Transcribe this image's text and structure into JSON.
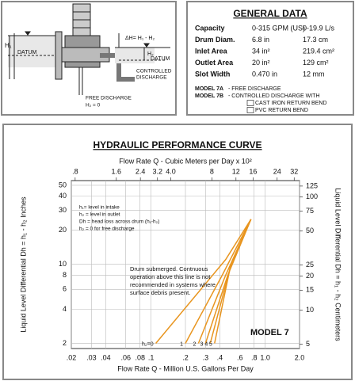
{
  "diagram": {
    "labels": {
      "h1": "H₁",
      "datum_left": "DATUM",
      "delta_h": "ΔH= H₁ - H₂",
      "h2": "H₂",
      "datum_right": "DATUM",
      "controlled": "CONTROLLED",
      "discharge": "DISCHARGE",
      "free_discharge": "FREE DISCHARGE",
      "h2_zero": "H₂ = 0"
    }
  },
  "general_data": {
    "title": "GENERAL DATA",
    "rows": [
      [
        "Capacity",
        "0-315 GPM (US)",
        "0-19.9 L/s"
      ],
      [
        "Drum Diam.",
        "6.8 in",
        "17.3 cm"
      ],
      [
        "Inlet Area",
        "34 in²",
        "219.4 cm²"
      ],
      [
        "Outlet Area",
        "20 in²",
        "129 cm²"
      ],
      [
        "Slot Width",
        "0.470 in",
        "12 mm"
      ]
    ],
    "models": [
      {
        "label": "MODEL 7A",
        "text": "-   FREE DISCHARGE"
      },
      {
        "label": "MODEL 7B",
        "text": "-   CONTROLLED DISCHARGE WITH"
      }
    ],
    "options": [
      "CAST IRON RETURN BEND",
      "PVC RETURN BEND"
    ]
  },
  "chart_data": {
    "type": "line",
    "title": "HYDRAULIC PERFORMANCE CURVE",
    "x2_label": "Flow Rate Q - Cubic Meters per Day x 10²",
    "x_label": "Flow Rate Q - Million U.S. Gallons Per Day",
    "y_label": "Liquid Level Differential  Dh = h₁ - h₂ Inches",
    "y2_label": "Liquid Level Differential  Dh = h₁ - h₂ Centimeters",
    "log_scale": true,
    "grid": true,
    "xlim": [
      0.02,
      2.0
    ],
    "xticks": [
      {
        "value": 0.02,
        "label": ".02"
      },
      {
        "value": 0.03,
        "label": ".03"
      },
      {
        "value": 0.04,
        "label": ".04"
      },
      {
        "value": 0.06,
        "label": ".06"
      },
      {
        "value": 0.08,
        "label": ".08"
      },
      {
        "value": 0.1,
        "label": ".1"
      },
      {
        "value": 0.2,
        "label": ".2"
      },
      {
        "value": 0.3,
        "label": ".3"
      },
      {
        "value": 0.4,
        "label": ".4"
      },
      {
        "value": 0.6,
        "label": ".6"
      },
      {
        "value": 0.8,
        "label": ".8"
      },
      {
        "value": 1.0,
        "label": "1.0"
      },
      {
        "value": 2.0,
        "label": "2.0"
      }
    ],
    "x2lim": [
      0.75,
      35
    ],
    "x2ticks": [
      {
        "value": 0.8,
        "label": ".8"
      },
      1.6,
      2.4,
      3.2,
      {
        "value": 4.0,
        "label": "4.0"
      },
      8,
      12,
      16,
      24,
      32
    ],
    "ylim": [
      1.8,
      55
    ],
    "yticks": [
      2,
      4,
      6,
      8,
      10,
      20,
      30,
      40,
      50
    ],
    "y2lim": [
      4.57,
      139.7
    ],
    "y2ticks": [
      5,
      10,
      15,
      20,
      25,
      50,
      75,
      100,
      125
    ],
    "series": [
      {
        "name": "h₂=0",
        "color": "#e8951f",
        "x": [
          0.11,
          0.45,
          0.75
        ],
        "values": [
          2,
          11,
          25
        ]
      },
      {
        "name": "1",
        "color": "#e8951f",
        "x": [
          0.2,
          0.42,
          0.75
        ],
        "values": [
          2,
          8,
          25
        ]
      },
      {
        "name": "2",
        "color": "#e8951f",
        "x": [
          0.26,
          0.45,
          0.75
        ],
        "values": [
          2,
          8,
          25
        ]
      },
      {
        "name": "3",
        "color": "#e8951f",
        "x": [
          0.3,
          0.47,
          0.75
        ],
        "values": [
          2,
          8,
          25
        ]
      },
      {
        "name": "4",
        "color": "#e8951f",
        "x": [
          0.33,
          0.49,
          0.75
        ],
        "values": [
          2,
          9,
          25
        ]
      },
      {
        "name": "5",
        "color": "#e8951f",
        "x": [
          0.36,
          0.5,
          0.75
        ],
        "values": [
          2,
          10,
          25
        ]
      }
    ],
    "notes": [
      "h₁= level in intake",
      "h₂ = level in outlet",
      "Dh = head loss across drum (h₁-h₂)",
      "h₂ = 0 for free discharge"
    ],
    "annotation": [
      "Drum submerged.  Contnuous",
      "operation above this line is not",
      "recommended in systems where",
      "surface debris present."
    ],
    "model_label": "MODEL 7"
  }
}
